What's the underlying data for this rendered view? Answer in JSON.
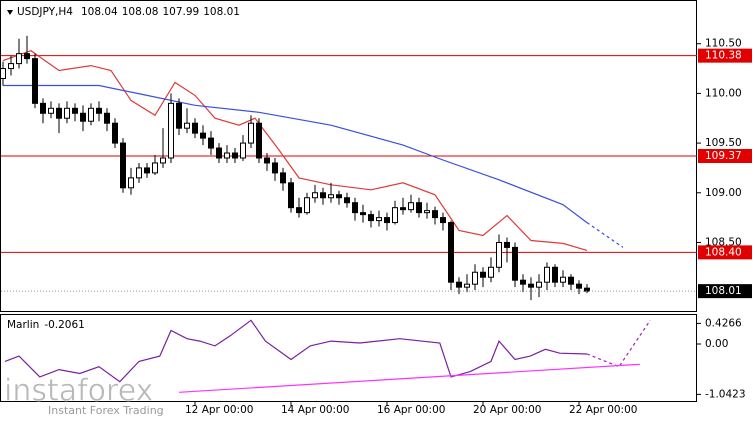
{
  "chart_data": {
    "type": "candlestick",
    "title": "USDJPY,H4",
    "categories": [
      null,
      null,
      null,
      null,
      null,
      null,
      null,
      null,
      null,
      null,
      null,
      null,
      null,
      null,
      null,
      null,
      null,
      null,
      null,
      null,
      null,
      null,
      null,
      null,
      "12 Apr 00:00",
      null,
      null,
      null,
      null,
      null,
      null,
      null,
      null,
      null,
      null,
      null,
      "14 Apr 00:00",
      null,
      null,
      null,
      null,
      null,
      null,
      null,
      null,
      null,
      null,
      null,
      "16 Apr 00:00",
      null,
      null,
      null,
      null,
      null,
      null,
      null,
      null,
      null,
      null,
      null,
      "20 Apr 00:00",
      null,
      null,
      null,
      null,
      null,
      null,
      null,
      null,
      null,
      null,
      null,
      "22 Apr 00:00",
      null
    ],
    "open": [
      110.15,
      110.25,
      110.3,
      110.4,
      110.35,
      109.9,
      109.8,
      109.85,
      109.75,
      109.85,
      109.8,
      109.72,
      109.85,
      109.8,
      109.7,
      109.5,
      109.05,
      109.15,
      109.25,
      109.2,
      109.3,
      109.35,
      109.9,
      109.65,
      109.7,
      109.6,
      109.55,
      109.45,
      109.35,
      109.4,
      109.35,
      109.5,
      109.7,
      109.35,
      109.3,
      109.2,
      109.1,
      108.85,
      108.8,
      108.95,
      109.0,
      108.95,
      108.98,
      108.95,
      108.9,
      108.8,
      108.78,
      108.72,
      108.75,
      108.7,
      108.85,
      108.83,
      108.9,
      108.8,
      108.82,
      108.75,
      108.7,
      108.1,
      108.05,
      108.08,
      108.2,
      108.15,
      108.25,
      108.5,
      108.45,
      108.12,
      108.08,
      108.05,
      108.1,
      108.25,
      108.1,
      108.15,
      108.08,
      108.04
    ],
    "high": [
      110.32,
      110.38,
      110.55,
      110.58,
      110.4,
      109.95,
      109.92,
      109.9,
      109.92,
      109.9,
      109.88,
      109.9,
      109.92,
      109.85,
      109.75,
      109.55,
      109.25,
      109.3,
      109.3,
      109.38,
      109.65,
      110.0,
      109.95,
      109.85,
      109.75,
      109.68,
      109.62,
      109.5,
      109.48,
      109.45,
      109.58,
      109.78,
      109.75,
      109.4,
      109.35,
      109.25,
      109.15,
      108.95,
      109.0,
      109.08,
      109.05,
      109.1,
      109.02,
      109.0,
      108.95,
      108.88,
      108.82,
      108.82,
      108.8,
      108.92,
      108.95,
      108.98,
      108.95,
      108.9,
      108.86,
      108.8,
      108.72,
      108.15,
      108.18,
      108.28,
      108.25,
      108.35,
      108.58,
      108.55,
      108.5,
      108.18,
      108.15,
      108.18,
      108.3,
      108.28,
      108.22,
      108.18,
      108.12,
      108.08
    ],
    "low": [
      110.08,
      110.18,
      110.25,
      110.3,
      109.85,
      109.7,
      109.75,
      109.6,
      109.7,
      109.72,
      109.62,
      109.68,
      109.72,
      109.62,
      109.45,
      109.0,
      108.98,
      109.1,
      109.15,
      109.18,
      109.25,
      109.3,
      109.58,
      109.6,
      109.55,
      109.48,
      109.38,
      109.3,
      109.3,
      109.3,
      109.32,
      109.45,
      109.3,
      109.22,
      109.12,
      109.02,
      108.8,
      108.75,
      108.78,
      108.9,
      108.88,
      108.9,
      108.88,
      108.85,
      108.72,
      108.7,
      108.65,
      108.66,
      108.62,
      108.68,
      108.78,
      108.8,
      108.75,
      108.74,
      108.68,
      108.62,
      108.02,
      107.98,
      108.0,
      108.02,
      108.05,
      108.1,
      108.2,
      108.3,
      108.05,
      108.0,
      107.92,
      107.95,
      108.02,
      108.05,
      108.05,
      108.02,
      107.98,
      107.99
    ],
    "close": [
      110.25,
      110.3,
      110.4,
      110.35,
      109.9,
      109.8,
      109.85,
      109.75,
      109.85,
      109.8,
      109.72,
      109.85,
      109.8,
      109.7,
      109.5,
      109.05,
      109.15,
      109.25,
      109.2,
      109.3,
      109.35,
      109.9,
      109.65,
      109.7,
      109.6,
      109.55,
      109.45,
      109.35,
      109.4,
      109.35,
      109.5,
      109.7,
      109.35,
      109.3,
      109.2,
      109.1,
      108.85,
      108.8,
      108.95,
      109.0,
      108.95,
      108.98,
      108.95,
      108.9,
      108.8,
      108.78,
      108.72,
      108.75,
      108.7,
      108.85,
      108.83,
      108.9,
      108.8,
      108.82,
      108.75,
      108.7,
      108.1,
      108.05,
      108.08,
      108.2,
      108.15,
      108.25,
      108.5,
      108.45,
      108.12,
      108.08,
      108.05,
      108.1,
      108.25,
      108.1,
      108.15,
      108.08,
      108.04,
      108.01
    ],
    "ylim": [
      107.8,
      110.94
    ],
    "yticks": [
      {
        "value": 110.5,
        "label": "110.50"
      },
      {
        "value": 110,
        "label": "110.00"
      },
      {
        "value": 109.5,
        "label": "109.50"
      },
      {
        "value": 109,
        "label": "109.00"
      },
      {
        "value": 108.5,
        "label": "108.50"
      }
    ],
    "levels": [
      110.38,
      109.37,
      {
        "value": 108.4,
        "label": "108.40"
      }
    ],
    "level_color": "#e00000",
    "lines": [
      {
        "color": "#e03a3a",
        "dash": false,
        "x": [
          0,
          3.5,
          7,
          11,
          13.5,
          16,
          19,
          21.5,
          24,
          26.5,
          29.5,
          31.5,
          34.5,
          37,
          41,
          46,
          50,
          54,
          57,
          60,
          63,
          66,
          70,
          73
        ],
        "values": [
          110.33,
          110.43,
          110.23,
          110.28,
          110.23,
          109.93,
          109.78,
          110.11,
          109.98,
          109.75,
          109.68,
          109.75,
          109.43,
          109.15,
          109.08,
          109.03,
          109.1,
          108.98,
          108.62,
          108.57,
          108.77,
          108.52,
          108.49,
          108.42
        ]
      },
      {
        "color": "#3a4fe0",
        "dash": false,
        "x": [
          0,
          12,
          18,
          24,
          32,
          41,
          50,
          55,
          62,
          70,
          73
        ],
        "values": [
          110.08,
          110.08,
          109.98,
          109.88,
          109.81,
          109.68,
          109.48,
          109.33,
          109.13,
          108.88,
          108.7
        ]
      },
      {
        "color": "#3a4fe0",
        "dash": true,
        "x": [
          73,
          77.5
        ],
        "values": [
          108.7,
          108.45
        ]
      }
    ],
    "indicator": {
      "name": "Marlin",
      "value": -0.2061,
      "ylim": [
        -1.2,
        0.6
      ],
      "yticks": [
        0.4266,
        {
          "value": 0,
          "label": "0.00"
        },
        -1.0423
      ],
      "lines": [
        {
          "color": "#7a1fa0",
          "dash": false,
          "x": [
            0.25,
            2,
            4.6,
            7,
            9.6,
            12,
            14.6,
            17,
            19.6,
            21,
            23,
            24.6,
            26.5,
            28.4,
            31,
            32.8,
            36,
            38.4,
            41,
            44.6,
            49.6,
            54.6,
            56,
            58.4,
            61,
            62,
            64,
            65.9,
            67.8,
            69.6,
            73
          ],
          "values": [
            -0.36,
            -0.25,
            -0.68,
            -0.53,
            -0.61,
            -0.47,
            -0.78,
            -0.36,
            -0.25,
            0.28,
            0.11,
            0.06,
            -0.04,
            0.17,
            0.49,
            0.06,
            -0.32,
            -0.04,
            0.06,
            0.02,
            0.11,
            0.02,
            -0.68,
            -0.57,
            -0.36,
            0.06,
            -0.32,
            -0.25,
            -0.11,
            -0.19,
            -0.2061
          ]
        },
        {
          "color": "#a020c0",
          "dash": true,
          "x": [
            73,
            77,
            80.9
          ],
          "values": [
            -0.2061,
            -0.47,
            0.49
          ]
        },
        {
          "color": "#ff30ff",
          "dash": false,
          "x": [
            22,
            79.6
          ],
          "values": [
            -1.0,
            -0.42
          ]
        }
      ]
    }
  },
  "watermark": {
    "brand": "instaforex",
    "tagline": "Instant Forex Trading"
  }
}
